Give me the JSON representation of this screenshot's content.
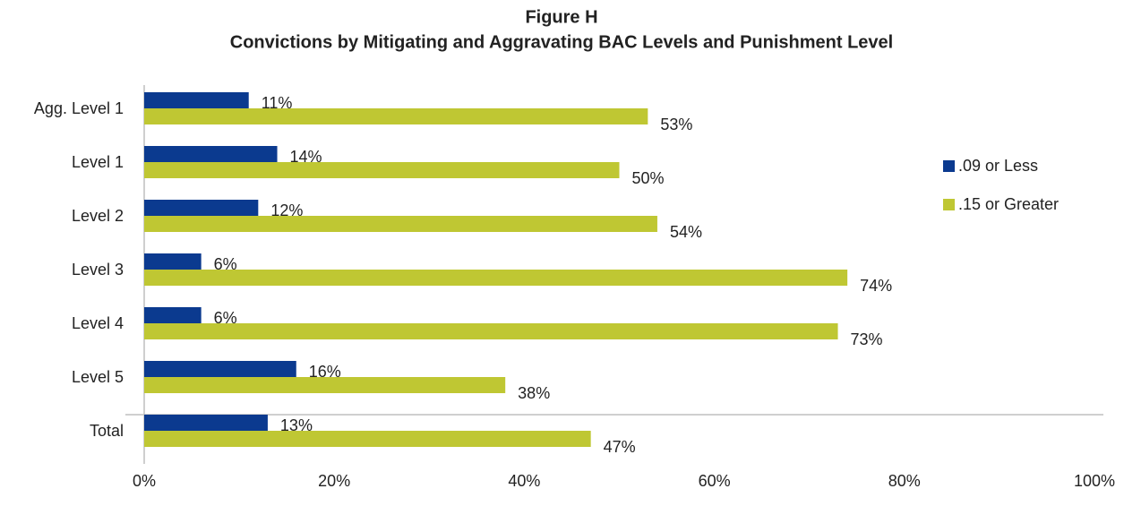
{
  "chart_data": {
    "type": "hbar",
    "title": "Figure H",
    "subtitle": "Convictions by Mitigating and Aggravating BAC Levels and Punishment Level",
    "categories": [
      "Agg. Level 1",
      "Level 1",
      "Level 2",
      "Level 3",
      "Level 4",
      "Level 5",
      "Total"
    ],
    "series": [
      {
        "name": ".09 or Less",
        "color": "#0b3a8f",
        "values": [
          11,
          14,
          12,
          6,
          6,
          16,
          13
        ],
        "value_labels": [
          "11%",
          "14%",
          "12%",
          "6%",
          "6%",
          "16%",
          "13%"
        ]
      },
      {
        "name": ".15 or Greater",
        "color": "#bfc733",
        "values": [
          53,
          50,
          54,
          74,
          73,
          38,
          47
        ],
        "value_labels": [
          "53%",
          "50%",
          "54%",
          "74%",
          "73%",
          "38%",
          "47%"
        ]
      }
    ],
    "xlim": [
      0,
      100
    ],
    "xticks": [
      {
        "value": 0,
        "label": "0%"
      },
      {
        "value": 20,
        "label": "20%"
      },
      {
        "value": 40,
        "label": "40%"
      },
      {
        "value": 60,
        "label": "60%"
      },
      {
        "value": 80,
        "label": "80%"
      },
      {
        "value": 100,
        "label": "100%"
      }
    ],
    "legend": "right",
    "grid": false
  }
}
